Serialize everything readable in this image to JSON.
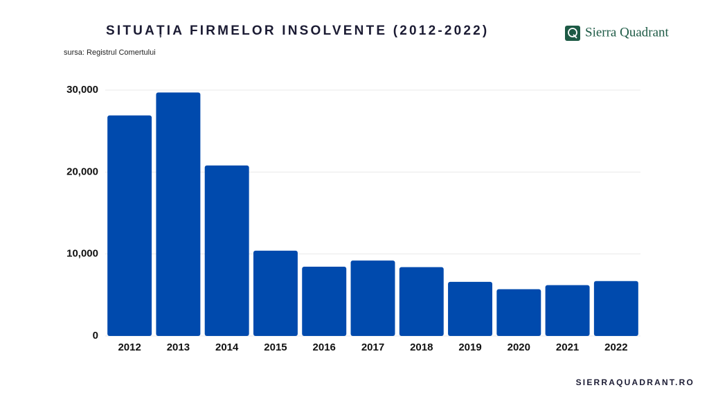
{
  "chart_data": {
    "type": "bar",
    "title": "SITUAȚIA FIRMELOR INSOLVENTE (2012-2022)",
    "source": "sursa: Registrul Comertului",
    "brand": "Sierra Quadrant",
    "website": "SIERRAQUADRANT.RO",
    "categories": [
      "2012",
      "2013",
      "2014",
      "2015",
      "2016",
      "2017",
      "2018",
      "2019",
      "2020",
      "2021",
      "2022"
    ],
    "values": [
      26900,
      29700,
      20800,
      10400,
      8450,
      9200,
      8400,
      6600,
      5700,
      6200,
      6700
    ],
    "color": "#004aad",
    "ylim": [
      0,
      30000
    ],
    "yticks": [
      0,
      {
        "value": 10000,
        "label": "10,000"
      },
      {
        "value": 20000,
        "label": "20,000"
      },
      {
        "value": 30000,
        "label": "30,000"
      }
    ],
    "grid": true
  }
}
